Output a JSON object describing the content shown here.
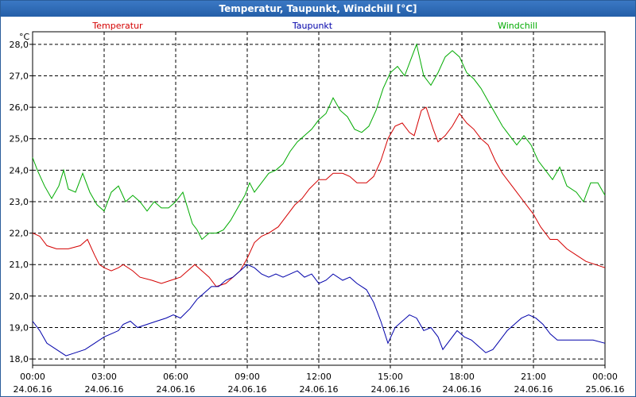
{
  "window": {
    "title": "Temperatur, Taupunkt, Windchill [°C]"
  },
  "chart_data": {
    "type": "line",
    "unit_label": "°C",
    "ylim": [
      17.8,
      28.4
    ],
    "yticks": [
      {
        "v": 28.0,
        "label": "28,0"
      },
      {
        "v": 27.0,
        "label": "27,0"
      },
      {
        "v": 26.0,
        "label": "26,0"
      },
      {
        "v": 25.0,
        "label": "25,0"
      },
      {
        "v": 24.0,
        "label": "24,0"
      },
      {
        "v": 23.0,
        "label": "23,0"
      },
      {
        "v": 22.0,
        "label": "22,0"
      },
      {
        "v": 21.0,
        "label": "21,0"
      },
      {
        "v": 20.0,
        "label": "20,0"
      },
      {
        "v": 19.0,
        "label": "19,0"
      },
      {
        "v": 18.0,
        "label": "18,0"
      }
    ],
    "xlim": [
      0,
      24
    ],
    "xticks": [
      {
        "h": 0,
        "time": "00:00",
        "date": "24.06.16"
      },
      {
        "h": 3,
        "time": "03:00",
        "date": "24.06.16"
      },
      {
        "h": 6,
        "time": "06:00",
        "date": "24.06.16"
      },
      {
        "h": 9,
        "time": "09:00",
        "date": "24.06.16"
      },
      {
        "h": 12,
        "time": "12:00",
        "date": "24.06.16"
      },
      {
        "h": 15,
        "time": "15:00",
        "date": "24.06.16"
      },
      {
        "h": 18,
        "time": "18:00",
        "date": "24.06.16"
      },
      {
        "h": 21,
        "time": "21:00",
        "date": "24.06.16"
      },
      {
        "h": 24,
        "time": "00:00",
        "date": "25.06.16"
      }
    ],
    "grid": true,
    "legend_placement": "top",
    "series": [
      {
        "name": "Temperatur",
        "color": "#d40000",
        "points": [
          [
            0,
            22.0
          ],
          [
            0.3,
            21.9
          ],
          [
            0.6,
            21.6
          ],
          [
            1.0,
            21.5
          ],
          [
            1.5,
            21.5
          ],
          [
            2.0,
            21.6
          ],
          [
            2.3,
            21.8
          ],
          [
            2.6,
            21.3
          ],
          [
            2.8,
            21.0
          ],
          [
            3.0,
            20.9
          ],
          [
            3.3,
            20.8
          ],
          [
            3.6,
            20.9
          ],
          [
            3.8,
            21.0
          ],
          [
            4.2,
            20.8
          ],
          [
            4.5,
            20.6
          ],
          [
            5.0,
            20.5
          ],
          [
            5.4,
            20.4
          ],
          [
            5.8,
            20.5
          ],
          [
            6.2,
            20.6
          ],
          [
            6.5,
            20.8
          ],
          [
            6.8,
            21.0
          ],
          [
            7.1,
            20.8
          ],
          [
            7.4,
            20.6
          ],
          [
            7.7,
            20.3
          ],
          [
            8.1,
            20.4
          ],
          [
            8.4,
            20.6
          ],
          [
            8.7,
            20.8
          ],
          [
            9.0,
            21.2
          ],
          [
            9.3,
            21.7
          ],
          [
            9.6,
            21.9
          ],
          [
            9.9,
            22.0
          ],
          [
            10.3,
            22.2
          ],
          [
            10.7,
            22.6
          ],
          [
            11.0,
            22.9
          ],
          [
            11.3,
            23.1
          ],
          [
            11.6,
            23.4
          ],
          [
            12.0,
            23.7
          ],
          [
            12.3,
            23.7
          ],
          [
            12.6,
            23.9
          ],
          [
            13.0,
            23.9
          ],
          [
            13.3,
            23.8
          ],
          [
            13.6,
            23.6
          ],
          [
            14.0,
            23.6
          ],
          [
            14.3,
            23.8
          ],
          [
            14.6,
            24.3
          ],
          [
            14.9,
            25.0
          ],
          [
            15.2,
            25.4
          ],
          [
            15.5,
            25.5
          ],
          [
            15.8,
            25.2
          ],
          [
            16.0,
            25.1
          ],
          [
            16.3,
            25.9
          ],
          [
            16.5,
            26.0
          ],
          [
            16.8,
            25.3
          ],
          [
            17.0,
            24.9
          ],
          [
            17.3,
            25.1
          ],
          [
            17.6,
            25.4
          ],
          [
            17.9,
            25.8
          ],
          [
            18.2,
            25.5
          ],
          [
            18.5,
            25.3
          ],
          [
            18.8,
            25.0
          ],
          [
            19.1,
            24.8
          ],
          [
            19.4,
            24.3
          ],
          [
            19.7,
            23.9
          ],
          [
            20.0,
            23.6
          ],
          [
            20.3,
            23.3
          ],
          [
            20.6,
            23.0
          ],
          [
            21.0,
            22.6
          ],
          [
            21.3,
            22.2
          ],
          [
            21.7,
            21.8
          ],
          [
            22.0,
            21.8
          ],
          [
            22.4,
            21.5
          ],
          [
            22.8,
            21.3
          ],
          [
            23.2,
            21.1
          ],
          [
            23.6,
            21.0
          ],
          [
            24.0,
            20.9
          ]
        ]
      },
      {
        "name": "Taupunkt",
        "color": "#0000aa",
        "points": [
          [
            0,
            19.2
          ],
          [
            0.3,
            18.9
          ],
          [
            0.6,
            18.5
          ],
          [
            1.0,
            18.3
          ],
          [
            1.4,
            18.1
          ],
          [
            1.8,
            18.2
          ],
          [
            2.2,
            18.3
          ],
          [
            2.6,
            18.5
          ],
          [
            3.0,
            18.7
          ],
          [
            3.3,
            18.8
          ],
          [
            3.6,
            18.9
          ],
          [
            3.8,
            19.1
          ],
          [
            4.1,
            19.2
          ],
          [
            4.4,
            19.0
          ],
          [
            4.8,
            19.1
          ],
          [
            5.2,
            19.2
          ],
          [
            5.6,
            19.3
          ],
          [
            5.9,
            19.4
          ],
          [
            6.2,
            19.3
          ],
          [
            6.6,
            19.6
          ],
          [
            6.9,
            19.9
          ],
          [
            7.2,
            20.1
          ],
          [
            7.5,
            20.3
          ],
          [
            7.8,
            20.3
          ],
          [
            8.1,
            20.5
          ],
          [
            8.4,
            20.6
          ],
          [
            8.7,
            20.8
          ],
          [
            9.0,
            21.0
          ],
          [
            9.3,
            20.9
          ],
          [
            9.6,
            20.7
          ],
          [
            9.9,
            20.6
          ],
          [
            10.2,
            20.7
          ],
          [
            10.5,
            20.6
          ],
          [
            10.8,
            20.7
          ],
          [
            11.1,
            20.8
          ],
          [
            11.4,
            20.6
          ],
          [
            11.7,
            20.7
          ],
          [
            12.0,
            20.4
          ],
          [
            12.3,
            20.5
          ],
          [
            12.6,
            20.7
          ],
          [
            13.0,
            20.5
          ],
          [
            13.3,
            20.6
          ],
          [
            13.6,
            20.4
          ],
          [
            14.0,
            20.2
          ],
          [
            14.3,
            19.8
          ],
          [
            14.6,
            19.2
          ],
          [
            14.9,
            18.5
          ],
          [
            15.2,
            19.0
          ],
          [
            15.5,
            19.2
          ],
          [
            15.8,
            19.4
          ],
          [
            16.1,
            19.3
          ],
          [
            16.4,
            18.9
          ],
          [
            16.7,
            19.0
          ],
          [
            17.0,
            18.7
          ],
          [
            17.2,
            18.3
          ],
          [
            17.5,
            18.6
          ],
          [
            17.8,
            18.9
          ],
          [
            18.1,
            18.7
          ],
          [
            18.4,
            18.6
          ],
          [
            18.7,
            18.4
          ],
          [
            19.0,
            18.2
          ],
          [
            19.3,
            18.3
          ],
          [
            19.6,
            18.6
          ],
          [
            19.9,
            18.9
          ],
          [
            20.2,
            19.1
          ],
          [
            20.5,
            19.3
          ],
          [
            20.8,
            19.4
          ],
          [
            21.1,
            19.3
          ],
          [
            21.4,
            19.1
          ],
          [
            21.7,
            18.8
          ],
          [
            22.0,
            18.6
          ],
          [
            22.5,
            18.6
          ],
          [
            23.0,
            18.6
          ],
          [
            23.5,
            18.6
          ],
          [
            24.0,
            18.5
          ]
        ]
      },
      {
        "name": "Windchill",
        "color": "#00aa00",
        "points": [
          [
            0,
            24.4
          ],
          [
            0.2,
            24.0
          ],
          [
            0.5,
            23.5
          ],
          [
            0.8,
            23.1
          ],
          [
            1.1,
            23.5
          ],
          [
            1.3,
            24.0
          ],
          [
            1.5,
            23.4
          ],
          [
            1.8,
            23.3
          ],
          [
            2.1,
            23.9
          ],
          [
            2.4,
            23.3
          ],
          [
            2.7,
            22.9
          ],
          [
            3.0,
            22.7
          ],
          [
            3.3,
            23.3
          ],
          [
            3.6,
            23.5
          ],
          [
            3.9,
            23.0
          ],
          [
            4.2,
            23.2
          ],
          [
            4.5,
            23.0
          ],
          [
            4.8,
            22.7
          ],
          [
            5.1,
            23.0
          ],
          [
            5.4,
            22.8
          ],
          [
            5.7,
            22.8
          ],
          [
            6.0,
            23.0
          ],
          [
            6.3,
            23.3
          ],
          [
            6.5,
            22.8
          ],
          [
            6.7,
            22.3
          ],
          [
            6.9,
            22.1
          ],
          [
            7.1,
            21.8
          ],
          [
            7.4,
            22.0
          ],
          [
            7.7,
            22.0
          ],
          [
            8.0,
            22.1
          ],
          [
            8.3,
            22.4
          ],
          [
            8.6,
            22.8
          ],
          [
            8.9,
            23.2
          ],
          [
            9.1,
            23.6
          ],
          [
            9.3,
            23.3
          ],
          [
            9.6,
            23.6
          ],
          [
            9.9,
            23.9
          ],
          [
            10.2,
            24.0
          ],
          [
            10.5,
            24.2
          ],
          [
            10.8,
            24.6
          ],
          [
            11.1,
            24.9
          ],
          [
            11.4,
            25.1
          ],
          [
            11.7,
            25.3
          ],
          [
            12.0,
            25.6
          ],
          [
            12.3,
            25.8
          ],
          [
            12.6,
            26.3
          ],
          [
            12.9,
            25.9
          ],
          [
            13.2,
            25.7
          ],
          [
            13.5,
            25.3
          ],
          [
            13.8,
            25.2
          ],
          [
            14.1,
            25.4
          ],
          [
            14.4,
            25.9
          ],
          [
            14.7,
            26.6
          ],
          [
            15.0,
            27.1
          ],
          [
            15.3,
            27.3
          ],
          [
            15.6,
            27.0
          ],
          [
            15.9,
            27.6
          ],
          [
            16.1,
            28.0
          ],
          [
            16.4,
            27.0
          ],
          [
            16.7,
            26.7
          ],
          [
            17.0,
            27.1
          ],
          [
            17.3,
            27.6
          ],
          [
            17.6,
            27.8
          ],
          [
            17.9,
            27.6
          ],
          [
            18.2,
            27.1
          ],
          [
            18.5,
            26.9
          ],
          [
            18.8,
            26.6
          ],
          [
            19.1,
            26.2
          ],
          [
            19.4,
            25.8
          ],
          [
            19.7,
            25.4
          ],
          [
            20.0,
            25.1
          ],
          [
            20.3,
            24.8
          ],
          [
            20.6,
            25.1
          ],
          [
            20.9,
            24.8
          ],
          [
            21.2,
            24.3
          ],
          [
            21.5,
            24.0
          ],
          [
            21.8,
            23.7
          ],
          [
            22.1,
            24.1
          ],
          [
            22.4,
            23.5
          ],
          [
            22.8,
            23.3
          ],
          [
            23.1,
            23.0
          ],
          [
            23.4,
            23.6
          ],
          [
            23.7,
            23.6
          ],
          [
            24.0,
            23.2
          ]
        ]
      }
    ]
  }
}
